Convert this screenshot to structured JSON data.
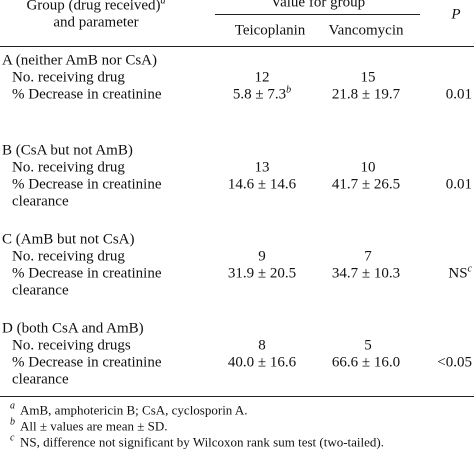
{
  "header": {
    "group_label": [
      "Group (drug received)",
      "and parameter"
    ],
    "group_sup": "a",
    "value_for_group": "Value for group",
    "columns": [
      "Teicoplanin",
      "Vancomycin"
    ],
    "p": "P"
  },
  "groups": [
    {
      "label": "A (neither AmB nor CsA)",
      "count_label": "No. receiving drug",
      "counts": [
        12,
        15
      ],
      "decrease_label": [
        "% Decrease in creatinine"
      ],
      "decrease": [
        "5.8 ± 7.3",
        "21.8 ± 19.7"
      ],
      "decrease_sup": [
        "b",
        null
      ],
      "p": "0.01",
      "p_sup": null
    },
    {
      "label": "B (CsA but not AmB)",
      "count_label": "No. receiving drug",
      "counts": [
        13,
        10
      ],
      "decrease_label": [
        "% Decrease in creatinine",
        "clearance"
      ],
      "decrease": [
        "14.6 ± 14.6",
        "41.7 ± 26.5"
      ],
      "decrease_sup": [
        null,
        null
      ],
      "p": "0.01",
      "p_sup": null
    },
    {
      "label": "C (AmB but not CsA)",
      "count_label": "No. receiving drug",
      "counts": [
        9,
        7
      ],
      "decrease_label": [
        "% Decrease in creatinine",
        "clearance"
      ],
      "decrease": [
        "31.9 ± 20.5",
        "34.7 ± 10.3"
      ],
      "decrease_sup": [
        null,
        null
      ],
      "p": "NS",
      "p_sup": "c"
    },
    {
      "label": "D (both CsA and AmB)",
      "count_label": "No. receiving drugs",
      "counts": [
        8,
        5
      ],
      "decrease_label": [
        "% Decrease in creatinine",
        "clearance"
      ],
      "decrease": [
        "40.0 ± 16.6",
        "66.6 ± 16.0"
      ],
      "decrease_sup": [
        null,
        null
      ],
      "p": "<0.05",
      "p_sup": null
    }
  ],
  "footnotes": [
    {
      "mark": "a",
      "text": "AmB, amphotericin B; CsA, cyclosporin A."
    },
    {
      "mark": "b",
      "text": "All ± values are mean ± SD."
    },
    {
      "mark": "c",
      "text": "NS, difference not significant by Wilcoxon rank sum test (two-tailed)."
    }
  ]
}
